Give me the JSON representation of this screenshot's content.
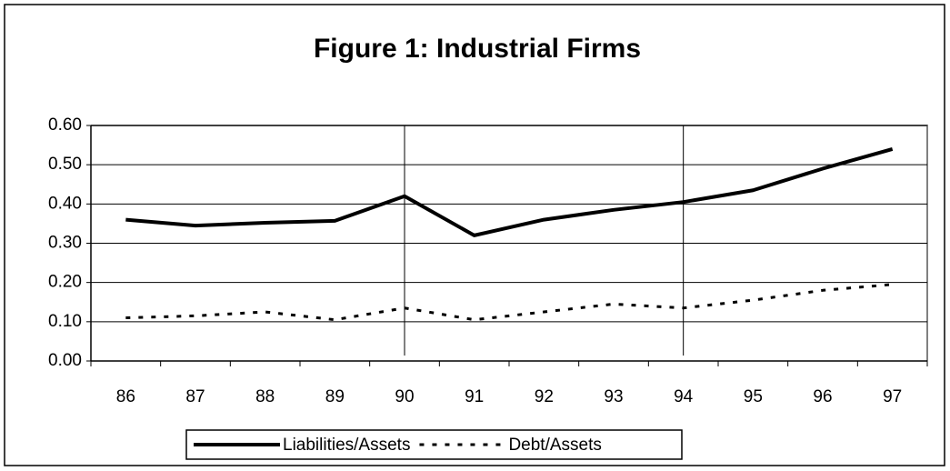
{
  "chart_data": {
    "type": "line",
    "title": "Figure 1: Industrial Firms",
    "categories": [
      "86",
      "87",
      "88",
      "89",
      "90",
      "91",
      "92",
      "93",
      "94",
      "95",
      "96",
      "97"
    ],
    "series": [
      {
        "name": "Liabilities/Assets",
        "color": "#000000",
        "dash": "solid",
        "values": [
          0.36,
          0.345,
          0.352,
          0.357,
          0.42,
          0.32,
          0.36,
          0.385,
          0.405,
          0.435,
          0.49,
          0.54
        ]
      },
      {
        "name": "Debt/Assets",
        "color": "#000000",
        "dash": "dashed",
        "values": [
          0.11,
          0.115,
          0.125,
          0.105,
          0.135,
          0.105,
          0.125,
          0.145,
          0.135,
          0.155,
          0.18,
          0.195
        ]
      }
    ],
    "ylim": [
      0,
      0.6
    ],
    "yticks": [
      {
        "value": 0,
        "label": "0.00"
      },
      {
        "value": 0.1,
        "label": "0.10"
      },
      {
        "value": 0.2,
        "label": "0.20"
      },
      {
        "value": 0.3,
        "label": "0.30"
      },
      {
        "value": 0.4,
        "label": "0.40"
      },
      {
        "value": 0.5,
        "label": "0.50"
      },
      {
        "value": 0.6,
        "label": "0.60"
      }
    ],
    "grid": true,
    "vertical_lines_at": [
      "90",
      "94"
    ],
    "legend": "bottom"
  }
}
